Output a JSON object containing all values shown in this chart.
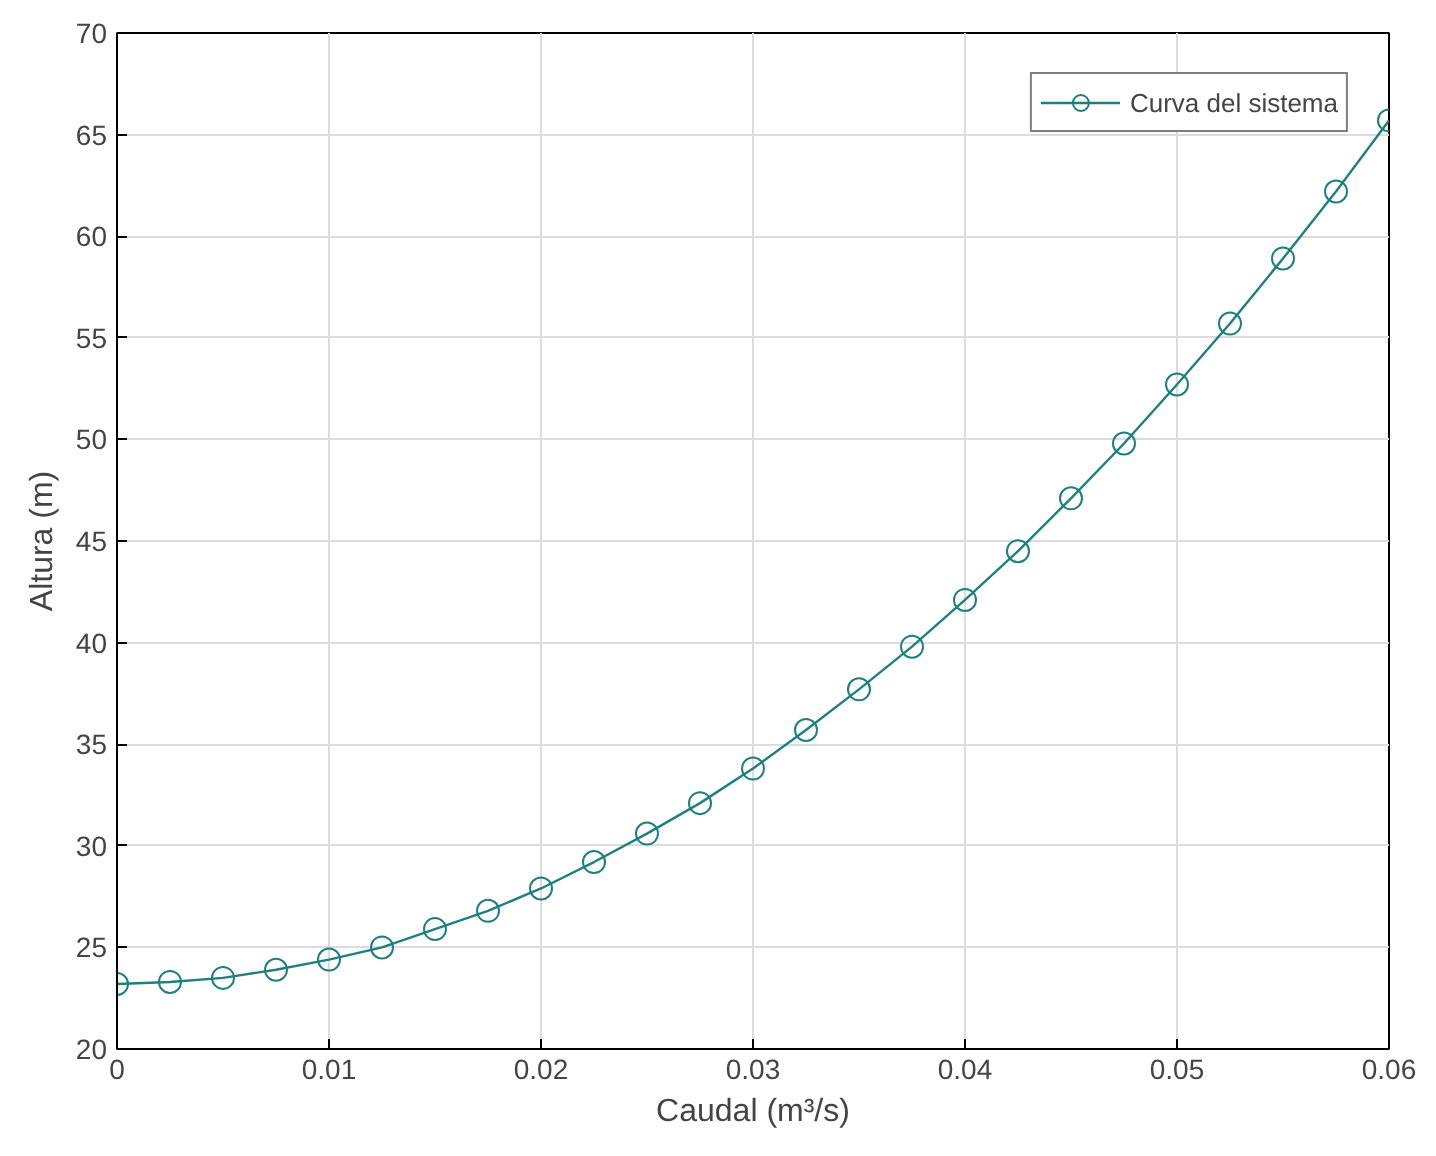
{
  "chart_data": {
    "type": "line",
    "xlabel": "Caudal (m³/s)",
    "ylabel": "Altura (m)",
    "x": [
      0,
      0.0025,
      0.005,
      0.0075,
      0.01,
      0.0125,
      0.015,
      0.0175,
      0.02,
      0.0225,
      0.025,
      0.0275,
      0.03,
      0.0325,
      0.035,
      0.0375,
      0.04,
      0.0425,
      0.045,
      0.0475,
      0.05,
      0.0525,
      0.055,
      0.0575,
      0.06
    ],
    "series": [
      {
        "name": "Curva del sistema",
        "color": "#1f7f7f",
        "values": [
          23.2,
          23.3,
          23.5,
          23.9,
          24.4,
          25.0,
          25.9,
          26.8,
          27.9,
          29.2,
          30.6,
          32.1,
          33.8,
          35.7,
          37.7,
          39.8,
          42.1,
          44.5,
          47.1,
          49.8,
          52.7,
          55.7,
          58.9,
          62.2,
          65.7
        ]
      }
    ],
    "xlim": [
      0,
      0.06
    ],
    "xticks": [
      0,
      0.01,
      0.02,
      0.03,
      0.04,
      0.05,
      0.06
    ],
    "ylim": [
      20,
      70
    ],
    "yticks": [
      20,
      25,
      30,
      35,
      40,
      45,
      50,
      55,
      60,
      65,
      70
    ],
    "grid": true,
    "legend": "top right",
    "marker": "circle",
    "line_style": "solid"
  }
}
